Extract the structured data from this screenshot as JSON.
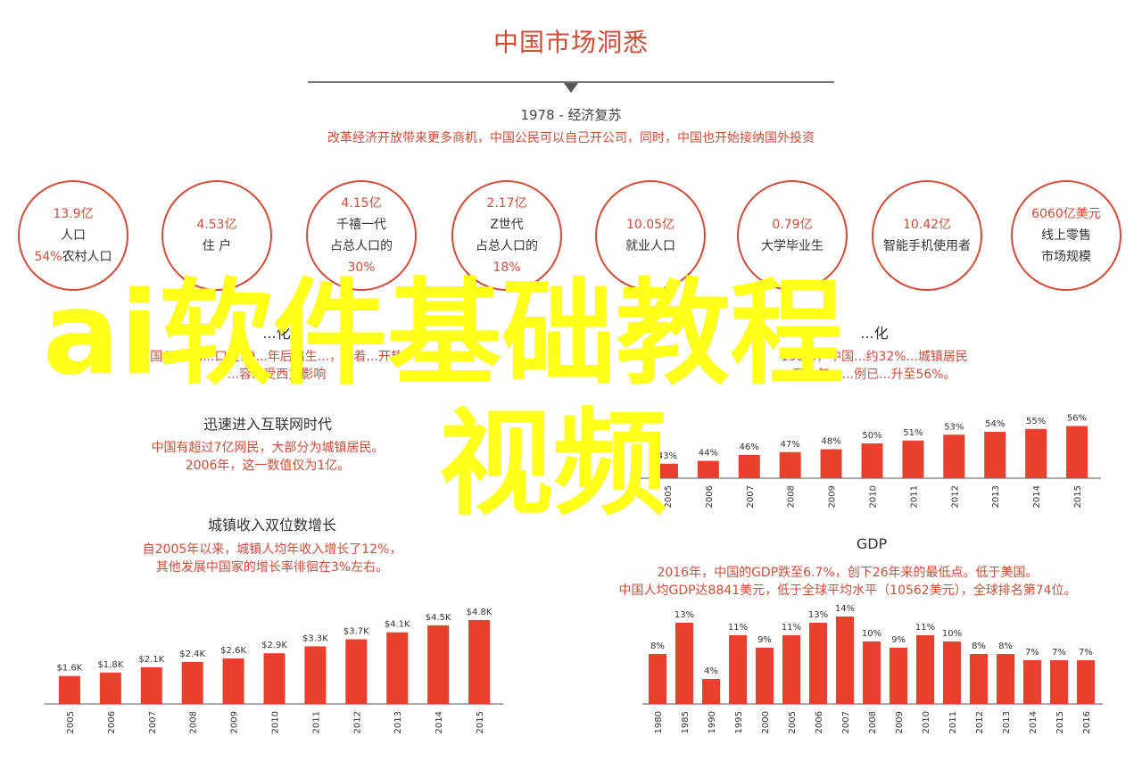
{
  "header": {
    "title": "中国市场洞悉",
    "era_label": "1978 - 经济复苏",
    "era_desc": "改革经济开放带来更多商机，中国公民可以自己开公司，同时，中国也开始接纳国外投资"
  },
  "circles": [
    {
      "lines": [
        "13.9亿",
        "人口"
      ],
      "mixed": {
        "pre": "54%",
        "post": "农村人口"
      }
    },
    {
      "lines": [
        "4.53亿",
        "住 户"
      ]
    },
    {
      "lines": [
        "4.15亿",
        "千禧一代",
        "占总人口的",
        "30%"
      ]
    },
    {
      "lines": [
        "2.17亿",
        "Z世代",
        "占总人口的",
        "18%"
      ]
    },
    {
      "lines": [
        "10.05亿",
        "就业人口"
      ]
    },
    {
      "lines": [
        "0.79亿",
        "大学毕业生"
      ]
    },
    {
      "lines": [
        "10.42亿",
        "智能手机使用者"
      ]
    },
    {
      "lines": [
        "6060亿美元",
        "线上零售",
        "市场规模"
      ]
    }
  ],
  "sections": {
    "urban": {
      "title": "...化",
      "line1": "中国60%的...口是19...年后出生...，...着...开放，",
      "line2": "...容...受西方影响"
    },
    "urban_right": {
      "title": "...化",
      "line1": "199...，中国...约32%...城镇居民",
      "line2": "到...年，...例已...升至56%。"
    },
    "internet": {
      "title": "迅速进入互联网时代",
      "line1": "中国有超过7亿网民，大部分为城镇居民。",
      "line2": "2006年，这一数值仅为1亿。"
    },
    "income": {
      "title": "城镇收入双位数增长",
      "line1": "自2005年以来，城镇人均年收入增长了12%，",
      "line2": "其他发展中国家的增长率徘徊在3%左右。"
    },
    "gdp": {
      "title": "GDP",
      "line1": "2016年，中国的GDP跌至6.7%，创下26年来的最低点。低于美国。",
      "line2": "中国人均GDP达8841美元，低于全球平均水平（10562美元），全球排名第74位。"
    }
  },
  "overlay": {
    "line1": "ai软件基础教程",
    "line2": "视频"
  },
  "colors": {
    "accent": "#d84a36",
    "bar": "#e8402c",
    "overlay": "#ffff19"
  },
  "chart_data": [
    {
      "type": "bar",
      "id": "urbanization",
      "categories": [
        "2005",
        "2006",
        "2007",
        "2008",
        "2009",
        "2010",
        "2011",
        "2012",
        "2013",
        "2014",
        "2015"
      ],
      "values": [
        43,
        44,
        46,
        47,
        48,
        50,
        51,
        53,
        54,
        55,
        56
      ],
      "labels": [
        "43%",
        "44%",
        "46%",
        "47%",
        "48%",
        "50%",
        "51%",
        "53%",
        "54%",
        "55%",
        "56%"
      ]
    },
    {
      "type": "bar",
      "id": "income",
      "categories": [
        "2005",
        "2006",
        "2007",
        "2008",
        "2009",
        "2010",
        "2011",
        "2012",
        "2013",
        "2014",
        "2015"
      ],
      "values": [
        1.6,
        1.8,
        2.1,
        2.4,
        2.6,
        2.9,
        3.3,
        3.7,
        4.1,
        4.5,
        4.8
      ],
      "labels": [
        "$1.6K",
        "$1.8K",
        "$2.1K",
        "$2.4K",
        "$2.6K",
        "$2.9K",
        "$3.3K",
        "$3.7K",
        "$4.1K",
        "$4.5K",
        "$4.8K"
      ]
    },
    {
      "type": "bar",
      "id": "gdp",
      "categories": [
        "1980",
        "1985",
        "1990",
        "1995",
        "2000",
        "2005",
        "2006",
        "2007",
        "2008",
        "2009",
        "2010",
        "2011",
        "2012",
        "2013",
        "2014",
        "2015",
        "2016"
      ],
      "values": [
        8,
        13,
        4,
        11,
        9,
        11,
        13,
        14,
        10,
        9,
        11,
        10,
        8,
        8,
        7,
        7,
        7
      ],
      "labels": [
        "8%",
        "13%",
        "4%",
        "11%",
        "9%",
        "11%",
        "13%",
        "14%",
        "10%",
        "9%",
        "11%",
        "10%",
        "8%",
        "8%",
        "7%",
        "7%",
        "7%"
      ]
    }
  ]
}
